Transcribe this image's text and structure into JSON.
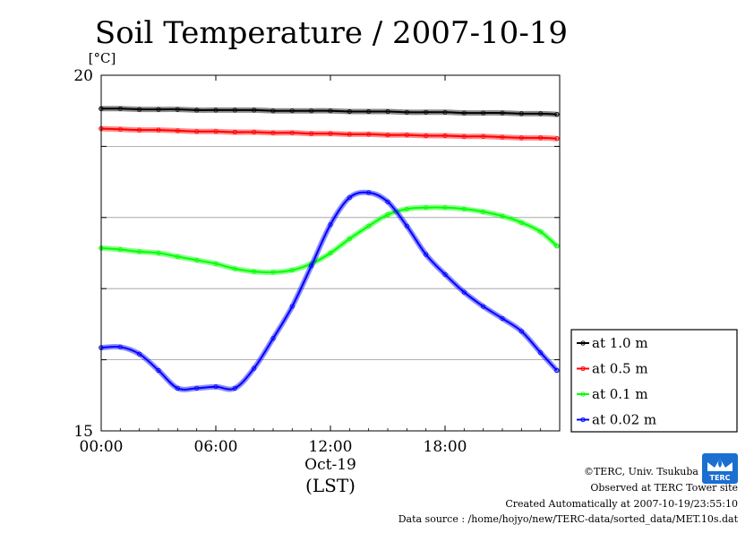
{
  "chart_data": {
    "type": "line",
    "title": "Soil Temperature / 2007-10-19",
    "ylabel": "[°C]",
    "xlabel_date": "Oct-19",
    "xlabel_unit": "(LST)",
    "ylim": [
      15,
      20
    ],
    "y_ticks": [
      "20",
      "15"
    ],
    "x_ticks": [
      {
        "hour": 0,
        "label": "00:00"
      },
      {
        "hour": 6,
        "label": "06:00"
      },
      {
        "hour": 12,
        "label": "12:00"
      },
      {
        "hour": 18,
        "label": "18:00"
      }
    ],
    "xlim_hours": [
      0,
      24
    ],
    "grid": "horizontal",
    "legend_position": "right",
    "x": [
      0,
      1,
      2,
      3,
      4,
      5,
      6,
      7,
      8,
      9,
      10,
      11,
      12,
      13,
      14,
      15,
      16,
      17,
      18,
      19,
      20,
      21,
      22,
      23,
      24
    ],
    "series": [
      {
        "name": "at 1.0 m",
        "color": "#000000",
        "values": [
          19.53,
          19.53,
          19.52,
          19.52,
          19.52,
          19.51,
          19.51,
          19.51,
          19.51,
          19.5,
          19.5,
          19.5,
          19.5,
          19.49,
          19.49,
          19.49,
          19.48,
          19.48,
          19.48,
          19.47,
          19.47,
          19.47,
          19.46,
          19.46,
          19.45
        ]
      },
      {
        "name": "at 0.5 m",
        "color": "#ff0000",
        "values": [
          19.25,
          19.24,
          19.23,
          19.23,
          19.22,
          19.21,
          19.21,
          19.2,
          19.2,
          19.19,
          19.19,
          19.18,
          19.18,
          19.17,
          19.17,
          19.16,
          19.16,
          19.15,
          19.15,
          19.14,
          19.14,
          19.13,
          19.12,
          19.12,
          19.11
        ]
      },
      {
        "name": "at 0.1 m",
        "color": "#00ff00",
        "values": [
          17.57,
          17.55,
          17.52,
          17.5,
          17.45,
          17.4,
          17.35,
          17.28,
          17.24,
          17.23,
          17.26,
          17.35,
          17.5,
          17.7,
          17.88,
          18.04,
          18.12,
          18.14,
          18.14,
          18.12,
          18.08,
          18.02,
          17.93,
          17.8,
          17.6
        ]
      },
      {
        "name": "at 0.02 m",
        "color": "#0000ff",
        "values": [
          16.17,
          16.18,
          16.08,
          15.85,
          15.6,
          15.6,
          15.62,
          15.6,
          15.88,
          16.3,
          16.75,
          17.32,
          17.9,
          18.28,
          18.35,
          18.22,
          17.88,
          17.48,
          17.2,
          16.95,
          16.75,
          16.58,
          16.4,
          16.1,
          15.85
        ]
      }
    ]
  },
  "credits": {
    "copyright": "©TERC, Univ. Tsukuba",
    "observed": "Observed at TERC Tower site",
    "created": "Created Automatically at 2007-10-19/23:55:10",
    "source": "Data source : /home/hojyo/new/TERC-data/sorted_data/MET.10s.dat",
    "logo_text": "TERC"
  }
}
